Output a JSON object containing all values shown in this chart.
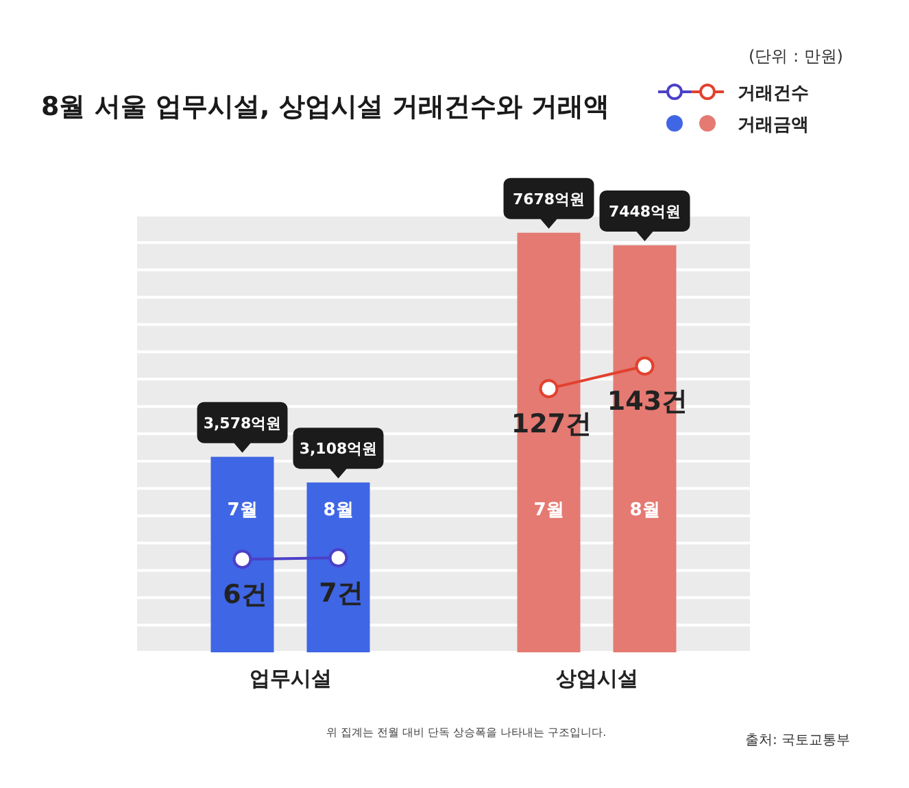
{
  "chart_data": {
    "type": "bar",
    "title": "8월 서울 업무시설, 상업시설 거래건수와 거래액",
    "categories": [
      "7월",
      "8월",
      "7월",
      "8월"
    ],
    "series": [
      {
        "name": "거래금액",
        "colors": [
          "#3f66e4",
          "#3f66e4",
          "#e47a72",
          "#e47a72"
        ],
        "values": [
          3578,
          3108,
          7678,
          7448
        ],
        "value_labels": [
          "3,578억원",
          "3,108억원",
          "7678억원",
          "7448억원"
        ]
      },
      {
        "name": "거래건수",
        "type": "line",
        "axis": "y2",
        "color": "#4b40c8",
        "values": [
          6,
          7,
          null,
          null
        ],
        "value_labels": [
          "6건",
          "7건",
          null,
          null
        ]
      },
      {
        "type": "line",
        "axis": "y2",
        "color": "#e2412e",
        "values": [
          null,
          null,
          127,
          143
        ],
        "value_labels": [
          null,
          null,
          "127건",
          "143건"
        ]
      }
    ],
    "ylim": [
      0,
      8000
    ],
    "yticks": [
      {
        "value": 0,
        "label": null
      },
      {
        "value": 500,
        "label": null
      },
      {
        "value": 1000,
        "label": null
      },
      {
        "value": 1500,
        "label": null
      },
      {
        "value": 2000,
        "label": null
      },
      {
        "value": 2500,
        "label": null
      },
      {
        "value": 3000,
        "label": null
      },
      {
        "value": 3500,
        "label": null
      },
      {
        "value": 4000,
        "label": null
      },
      {
        "value": 4500,
        "label": null
      },
      {
        "value": 5000,
        "label": null
      },
      {
        "value": 5500,
        "label": null
      },
      {
        "value": 6000,
        "label": null
      },
      {
        "value": 6500,
        "label": null
      },
      {
        "value": 7000,
        "label": null
      },
      {
        "value": 7500,
        "label": null
      },
      {
        "value": 8000,
        "label": null
      }
    ],
    "y2lim": [
      -60,
      250
    ],
    "grid": "y",
    "legend": "top right",
    "marker": "circle",
    "annotations": [
      "(단위 : 만원)",
      "업무시설",
      "상업시설",
      "위 집계는 전월 대비 단독 상승폭을 나타내는 구조입니다.",
      "출처: 국토교통부"
    ]
  }
}
